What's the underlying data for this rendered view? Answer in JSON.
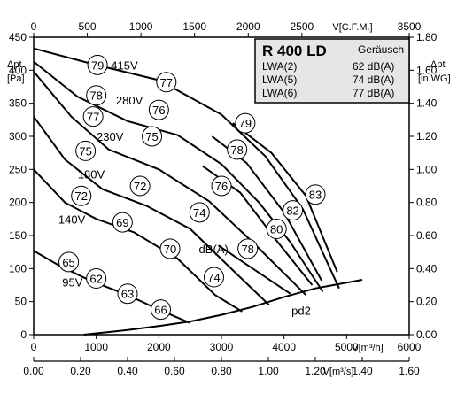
{
  "chart_data": {
    "type": "line",
    "title": "R 400 LD",
    "x_axis_bottom": {
      "label": "V[m³/h]",
      "range": [
        0,
        6000
      ],
      "ticks": [
        "0",
        "1000",
        "2000",
        "3000",
        "4000",
        "5000",
        "6000"
      ]
    },
    "x_axis_bottom2": {
      "label": "V[m³/s]",
      "range": [
        0,
        1.6
      ],
      "ticks": [
        "0.00",
        "0.20",
        "0.40",
        "0.60",
        "0.80",
        "1.00",
        "1.20",
        "1.40",
        "1.60"
      ]
    },
    "x_axis_top": {
      "label": "V[C.F.M.]",
      "range": [
        0,
        3500
      ],
      "ticks": [
        "0",
        "500",
        "1000",
        "1500",
        "2000",
        "2500",
        "3500"
      ]
    },
    "y_axis_left": {
      "label_main": "Δpt",
      "label_unit": "[Pa]",
      "range": [
        0,
        450
      ],
      "ticks": [
        "0",
        "50",
        "100",
        "150",
        "200",
        "250",
        "300",
        "350",
        "400",
        "450"
      ]
    },
    "y_axis_right": {
      "label_main": "Δpt",
      "label_unit": "[in.WG]",
      "range": [
        0,
        1.8
      ],
      "ticks": [
        "0.00",
        "0.20",
        "0.40",
        "0.60",
        "0.80",
        "1.00",
        "1.20",
        "1.40",
        "1.60",
        "1.80"
      ]
    },
    "info_box": {
      "title": "R 400 LD",
      "header": "Geräusch",
      "rows": [
        {
          "label": "LWA(2)",
          "value": "62 dB(A)"
        },
        {
          "label": "LWA(5)",
          "value": "74 dB(A)"
        },
        {
          "label": "LWA(6)",
          "value": "77 dB(A)"
        }
      ]
    },
    "fan_curves": [
      {
        "name": "415V",
        "label_at": [
          1450,
          408
        ],
        "points": [
          [
            0,
            433
          ],
          [
            1000,
            408
          ],
          [
            2000,
            385
          ],
          [
            3000,
            333
          ],
          [
            3700,
            270
          ],
          [
            4300,
            190
          ],
          [
            4880,
            70
          ]
        ]
      },
      {
        "name": "280V",
        "label_at": [
          1530,
          355
        ],
        "points": [
          [
            0,
            413
          ],
          [
            700,
            360
          ],
          [
            1500,
            323
          ],
          [
            2300,
            302
          ],
          [
            3000,
            258
          ],
          [
            3600,
            200
          ],
          [
            4100,
            140
          ],
          [
            4620,
            65
          ]
        ]
      },
      {
        "name": "230V",
        "label_at": [
          1220,
          300
        ],
        "points": [
          [
            0,
            398
          ],
          [
            600,
            330
          ],
          [
            1200,
            280
          ],
          [
            2000,
            250
          ],
          [
            2800,
            202
          ],
          [
            3500,
            140
          ],
          [
            4350,
            60
          ]
        ]
      },
      {
        "name": "180V",
        "label_at": [
          920,
          243
        ],
        "points": [
          [
            0,
            330
          ],
          [
            500,
            265
          ],
          [
            1100,
            220
          ],
          [
            1800,
            195
          ],
          [
            2500,
            160
          ],
          [
            3100,
            105
          ],
          [
            3760,
            45
          ]
        ]
      },
      {
        "name": "140V",
        "label_at": [
          610,
          175
        ],
        "points": [
          [
            0,
            250
          ],
          [
            500,
            200
          ],
          [
            1000,
            175
          ],
          [
            1600,
            155
          ],
          [
            2300,
            115
          ],
          [
            2900,
            60
          ],
          [
            3330,
            35
          ]
        ]
      },
      {
        "name": "95V",
        "label_at": [
          620,
          80
        ],
        "points": [
          [
            0,
            127
          ],
          [
            400,
            105
          ],
          [
            900,
            82
          ],
          [
            1500,
            60
          ],
          [
            2000,
            38
          ],
          [
            2490,
            18
          ]
        ]
      }
    ],
    "system_curve": {
      "name": "pd2",
      "label_at": [
        4120,
        30
      ],
      "points": [
        [
          800,
          0
        ],
        [
          1500,
          7
        ],
        [
          2000,
          13
        ],
        [
          2500,
          20
        ],
        [
          3000,
          30
        ],
        [
          3500,
          42
        ],
        [
          4000,
          57
        ],
        [
          4500,
          70
        ],
        [
          5250,
          83
        ]
      ]
    },
    "iso_noise_curves": [
      {
        "points": [
          [
            3180,
            320
          ],
          [
            3800,
            275
          ],
          [
            4350,
            210
          ],
          [
            4850,
            95
          ]
        ]
      },
      {
        "points": [
          [
            2850,
            300
          ],
          [
            3400,
            260
          ],
          [
            4000,
            185
          ],
          [
            4600,
            82
          ]
        ]
      },
      {
        "points": [
          [
            2700,
            255
          ],
          [
            3300,
            215
          ],
          [
            3900,
            140
          ],
          [
            4450,
            75
          ]
        ]
      },
      {
        "points": [
          [
            2950,
            135
          ],
          [
            3500,
            100
          ],
          [
            4100,
            62
          ]
        ]
      }
    ],
    "noise_badges": [
      {
        "label": "79",
        "x": 1020,
        "y": 408
      },
      {
        "label": "77",
        "x": 2120,
        "y": 382
      },
      {
        "label": "78",
        "x": 1000,
        "y": 362
      },
      {
        "label": "76",
        "x": 2000,
        "y": 340
      },
      {
        "label": "77",
        "x": 950,
        "y": 330
      },
      {
        "label": "75",
        "x": 1890,
        "y": 300
      },
      {
        "label": "75",
        "x": 830,
        "y": 278
      },
      {
        "label": "72",
        "x": 1700,
        "y": 225
      },
      {
        "label": "72",
        "x": 760,
        "y": 210
      },
      {
        "label": "69",
        "x": 1420,
        "y": 170
      },
      {
        "label": "70",
        "x": 2180,
        "y": 130
      },
      {
        "label": "65",
        "x": 560,
        "y": 110
      },
      {
        "label": "62",
        "x": 1000,
        "y": 85
      },
      {
        "label": "63",
        "x": 1500,
        "y": 62
      },
      {
        "label": "66",
        "x": 2030,
        "y": 38
      },
      {
        "label": "79",
        "x": 3380,
        "y": 320
      },
      {
        "label": "78",
        "x": 3250,
        "y": 280
      },
      {
        "label": "76",
        "x": 3000,
        "y": 225
      },
      {
        "label": "74",
        "x": 2650,
        "y": 185
      },
      {
        "label": "78",
        "x": 3420,
        "y": 130
      },
      {
        "label": "74",
        "x": 2880,
        "y": 87
      },
      {
        "label": "83",
        "x": 4500,
        "y": 212
      },
      {
        "label": "82",
        "x": 4140,
        "y": 188
      },
      {
        "label": "80",
        "x": 3880,
        "y": 160
      }
    ],
    "unit_label": {
      "text": "dB(A)",
      "x": 2640,
      "y": 130
    }
  }
}
